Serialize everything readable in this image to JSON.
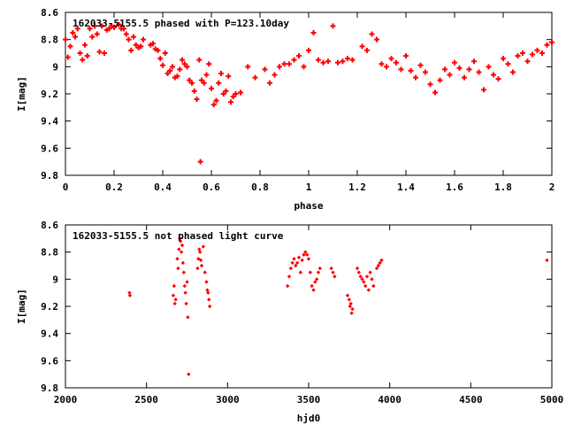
{
  "chart_data": [
    {
      "type": "scatter",
      "title": "162033-5155.5 phased with P=123.10day",
      "xlabel": "phase",
      "ylabel": "I[mag]",
      "xlim": [
        0,
        2
      ],
      "ylim": [
        8.6,
        9.8
      ],
      "y_inverted": true,
      "x_ticks": [
        "0",
        "0.2",
        "0.4",
        "0.6",
        "0.8",
        "1",
        "1.2",
        "1.4",
        "1.6",
        "1.8",
        "2"
      ],
      "y_ticks": [
        "8.6",
        "8.8",
        "9",
        "9.2",
        "9.4",
        "9.6",
        "9.8"
      ],
      "grid": false,
      "marker_color": "#ff0000",
      "series": [
        {
          "points": [
            [
              0.0,
              8.8
            ],
            [
              0.01,
              8.93
            ],
            [
              0.02,
              8.85
            ],
            [
              0.03,
              8.75
            ],
            [
              0.04,
              8.78
            ],
            [
              0.05,
              8.72
            ],
            [
              0.06,
              8.9
            ],
            [
              0.07,
              8.95
            ],
            [
              0.08,
              8.84
            ],
            [
              0.09,
              8.92
            ],
            [
              0.1,
              8.72
            ],
            [
              0.11,
              8.78
            ],
            [
              0.12,
              8.7
            ],
            [
              0.13,
              8.76
            ],
            [
              0.14,
              8.89
            ],
            [
              0.15,
              8.7
            ],
            [
              0.16,
              8.9
            ],
            [
              0.17,
              8.73
            ],
            [
              0.18,
              8.72
            ],
            [
              0.19,
              8.7
            ],
            [
              0.2,
              8.71
            ],
            [
              0.22,
              8.69
            ],
            [
              0.23,
              8.72
            ],
            [
              0.24,
              8.72
            ],
            [
              0.25,
              8.76
            ],
            [
              0.26,
              8.8
            ],
            [
              0.27,
              8.88
            ],
            [
              0.28,
              8.78
            ],
            [
              0.29,
              8.84
            ],
            [
              0.3,
              8.86
            ],
            [
              0.31,
              8.85
            ],
            [
              0.32,
              8.8
            ],
            [
              0.35,
              8.84
            ],
            [
              0.36,
              8.83
            ],
            [
              0.37,
              8.87
            ],
            [
              0.38,
              8.88
            ],
            [
              0.39,
              8.94
            ],
            [
              0.4,
              8.99
            ],
            [
              0.41,
              8.9
            ],
            [
              0.42,
              9.05
            ],
            [
              0.43,
              9.03
            ],
            [
              0.44,
              9.0
            ],
            [
              0.45,
              9.08
            ],
            [
              0.46,
              9.07
            ],
            [
              0.47,
              9.02
            ],
            [
              0.48,
              8.95
            ],
            [
              0.49,
              8.98
            ],
            [
              0.5,
              9.0
            ],
            [
              0.51,
              9.1
            ],
            [
              0.52,
              9.12
            ],
            [
              0.53,
              9.18
            ],
            [
              0.54,
              9.24
            ],
            [
              0.55,
              8.95
            ],
            [
              0.555,
              9.7
            ],
            [
              0.56,
              9.1
            ],
            [
              0.57,
              9.12
            ],
            [
              0.58,
              9.06
            ],
            [
              0.59,
              8.98
            ],
            [
              0.6,
              9.16
            ],
            [
              0.61,
              9.28
            ],
            [
              0.62,
              9.25
            ],
            [
              0.63,
              9.12
            ],
            [
              0.64,
              9.05
            ],
            [
              0.65,
              9.2
            ],
            [
              0.66,
              9.18
            ],
            [
              0.67,
              9.07
            ],
            [
              0.68,
              9.26
            ],
            [
              0.69,
              9.22
            ],
            [
              0.7,
              9.2
            ],
            [
              0.72,
              9.19
            ],
            [
              0.75,
              9.0
            ],
            [
              0.78,
              9.08
            ],
            [
              0.82,
              9.02
            ],
            [
              0.84,
              9.12
            ],
            [
              0.86,
              9.06
            ],
            [
              0.88,
              9.0
            ],
            [
              0.9,
              8.98
            ],
            [
              0.92,
              8.98
            ],
            [
              0.94,
              8.95
            ],
            [
              0.96,
              8.92
            ],
            [
              0.98,
              9.0
            ],
            [
              1.0,
              8.88
            ],
            [
              1.02,
              8.75
            ],
            [
              1.04,
              8.95
            ],
            [
              1.06,
              8.97
            ],
            [
              1.08,
              8.96
            ],
            [
              1.1,
              8.7
            ],
            [
              1.12,
              8.97
            ],
            [
              1.14,
              8.96
            ],
            [
              1.16,
              8.94
            ],
            [
              1.18,
              8.95
            ],
            [
              1.22,
              8.85
            ],
            [
              1.24,
              8.88
            ],
            [
              1.26,
              8.76
            ],
            [
              1.28,
              8.8
            ],
            [
              1.3,
              8.98
            ],
            [
              1.32,
              9.0
            ],
            [
              1.34,
              8.94
            ],
            [
              1.36,
              8.97
            ],
            [
              1.38,
              9.02
            ],
            [
              1.4,
              8.92
            ],
            [
              1.42,
              9.03
            ],
            [
              1.44,
              9.08
            ],
            [
              1.46,
              8.99
            ],
            [
              1.48,
              9.04
            ],
            [
              1.5,
              9.13
            ],
            [
              1.52,
              9.19
            ],
            [
              1.54,
              9.1
            ],
            [
              1.56,
              9.02
            ],
            [
              1.58,
              9.06
            ],
            [
              1.6,
              8.97
            ],
            [
              1.62,
              9.01
            ],
            [
              1.64,
              9.08
            ],
            [
              1.66,
              9.02
            ],
            [
              1.68,
              8.96
            ],
            [
              1.7,
              9.04
            ],
            [
              1.72,
              9.17
            ],
            [
              1.74,
              9.0
            ],
            [
              1.76,
              9.06
            ],
            [
              1.78,
              9.09
            ],
            [
              1.8,
              8.94
            ],
            [
              1.82,
              8.98
            ],
            [
              1.84,
              9.04
            ],
            [
              1.86,
              8.92
            ],
            [
              1.88,
              8.9
            ],
            [
              1.9,
              8.96
            ],
            [
              1.92,
              8.91
            ],
            [
              1.94,
              8.88
            ],
            [
              1.96,
              8.9
            ],
            [
              1.98,
              8.84
            ],
            [
              2.0,
              8.82
            ]
          ]
        }
      ]
    },
    {
      "type": "scatter",
      "title": "162033-5155.5 not phased light curve",
      "xlabel": "hjd0",
      "ylabel": "I[mag]",
      "xlim": [
        2000,
        5000
      ],
      "ylim": [
        8.6,
        9.8
      ],
      "y_inverted": true,
      "x_ticks": [
        "2000",
        "2500",
        "3000",
        "3500",
        "4000",
        "4500",
        "5000"
      ],
      "y_ticks": [
        "8.6",
        "8.8",
        "9",
        "9.2",
        "9.4",
        "9.6",
        "9.8"
      ],
      "grid": false,
      "marker_color": "#ff0000",
      "series": [
        {
          "points": [
            [
              2395,
              9.1
            ],
            [
              2398,
              9.12
            ],
            [
              2665,
              9.12
            ],
            [
              2670,
              9.05
            ],
            [
              2675,
              9.18
            ],
            [
              2680,
              9.15
            ],
            [
              2690,
              8.85
            ],
            [
              2695,
              8.92
            ],
            [
              2700,
              8.78
            ],
            [
              2705,
              8.7
            ],
            [
              2710,
              8.72
            ],
            [
              2715,
              8.8
            ],
            [
              2720,
              8.75
            ],
            [
              2725,
              8.88
            ],
            [
              2730,
              8.95
            ],
            [
              2735,
              9.05
            ],
            [
              2740,
              9.1
            ],
            [
              2745,
              9.18
            ],
            [
              2750,
              9.02
            ],
            [
              2755,
              9.28
            ],
            [
              2760,
              9.7
            ],
            [
              2815,
              8.92
            ],
            [
              2820,
              8.85
            ],
            [
              2825,
              8.78
            ],
            [
              2830,
              8.8
            ],
            [
              2835,
              8.86
            ],
            [
              2840,
              8.9
            ],
            [
              2850,
              8.76
            ],
            [
              2860,
              8.95
            ],
            [
              2870,
              9.02
            ],
            [
              2875,
              9.08
            ],
            [
              2880,
              9.1
            ],
            [
              2885,
              9.15
            ],
            [
              2890,
              9.2
            ],
            [
              3370,
              9.05
            ],
            [
              3380,
              8.98
            ],
            [
              3390,
              8.92
            ],
            [
              3400,
              8.88
            ],
            [
              3410,
              8.85
            ],
            [
              3420,
              8.9
            ],
            [
              3430,
              8.88
            ],
            [
              3440,
              8.84
            ],
            [
              3450,
              8.95
            ],
            [
              3460,
              8.86
            ],
            [
              3470,
              8.82
            ],
            [
              3480,
              8.8
            ],
            [
              3490,
              8.82
            ],
            [
              3500,
              8.85
            ],
            [
              3510,
              8.95
            ],
            [
              3520,
              9.05
            ],
            [
              3530,
              9.08
            ],
            [
              3540,
              9.02
            ],
            [
              3550,
              9.0
            ],
            [
              3560,
              8.95
            ],
            [
              3570,
              8.92
            ],
            [
              3640,
              8.92
            ],
            [
              3650,
              8.95
            ],
            [
              3660,
              8.98
            ],
            [
              3740,
              9.12
            ],
            [
              3750,
              9.15
            ],
            [
              3755,
              9.2
            ],
            [
              3760,
              9.18
            ],
            [
              3765,
              9.25
            ],
            [
              3770,
              9.22
            ],
            [
              3800,
              8.92
            ],
            [
              3810,
              8.95
            ],
            [
              3820,
              8.98
            ],
            [
              3830,
              9.0
            ],
            [
              3840,
              9.02
            ],
            [
              3850,
              9.05
            ],
            [
              3860,
              8.98
            ],
            [
              3870,
              9.08
            ],
            [
              3880,
              8.95
            ],
            [
              3890,
              9.0
            ],
            [
              3900,
              9.05
            ],
            [
              3920,
              8.92
            ],
            [
              3930,
              8.9
            ],
            [
              3940,
              8.88
            ],
            [
              3950,
              8.86
            ],
            [
              4970,
              8.86
            ]
          ]
        }
      ]
    }
  ]
}
